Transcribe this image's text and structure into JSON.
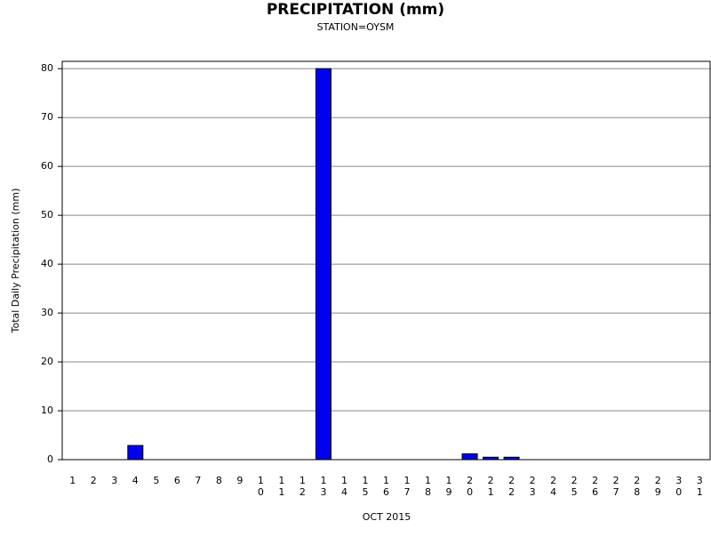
{
  "chart_data": {
    "type": "bar",
    "title": "PRECIPITATION (mm)",
    "subtitle": "STATION=OYSM",
    "x_label": "OCT 2015",
    "y_label": "Total Daily Precipitation (mm)",
    "categories": [
      "1",
      "2",
      "3",
      "4",
      "5",
      "6",
      "7",
      "8",
      "9",
      "10",
      "11",
      "12",
      "13",
      "14",
      "15",
      "16",
      "17",
      "18",
      "19",
      "20",
      "21",
      "22",
      "23",
      "24",
      "25",
      "26",
      "27",
      "28",
      "29",
      "30",
      "31"
    ],
    "values": [
      0,
      0,
      0,
      2.9,
      0,
      0,
      0,
      0,
      0,
      0,
      0,
      0,
      80,
      0,
      0,
      0,
      0,
      0,
      0,
      1.2,
      0.5,
      0.5,
      0,
      0,
      0,
      0,
      0,
      0,
      0,
      0,
      0
    ],
    "color": "#0000ee",
    "ylim": [
      0,
      81.5
    ],
    "yticks": [
      0,
      10,
      20,
      30,
      40,
      50,
      60,
      70,
      80
    ],
    "grid": true
  }
}
